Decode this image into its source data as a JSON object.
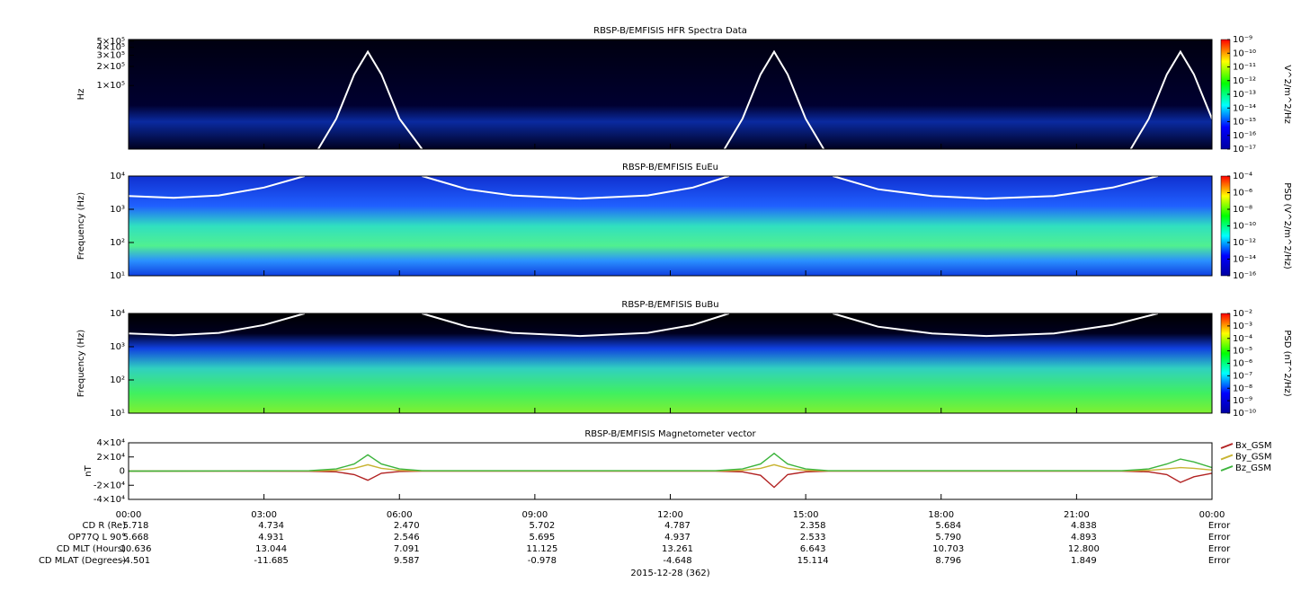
{
  "chart_data": [
    {
      "type": "spectrogram",
      "title": "RBSP-B/EMFISIS  HFR Spectra Data",
      "ylabel": "Hz",
      "log": true,
      "xlim": [
        0,
        24
      ],
      "xticks": [
        0,
        3,
        6,
        9,
        12,
        15,
        18,
        21,
        24
      ],
      "ylim": [
        10000,
        530000
      ],
      "yticks": [
        {
          "value": 500000,
          "label": "5×10⁵"
        },
        {
          "value": 400000,
          "label": "4×10⁵"
        },
        {
          "value": 300000,
          "label": "3×10⁵"
        },
        {
          "value": 200000,
          "label": "2×10⁵"
        },
        {
          "value": 100000,
          "label": "1×10⁵"
        }
      ],
      "colorbar": {
        "label": "V^2/m^2/Hz",
        "zlim": [
          1e-17,
          1e-09
        ],
        "ticks": [
          {
            "value": 1e-09,
            "label": "10⁻⁹"
          },
          {
            "value": 1e-10,
            "label": "10⁻¹⁰"
          },
          {
            "value": 1e-11,
            "label": "10⁻¹¹"
          },
          {
            "value": 1e-12,
            "label": "10⁻¹²"
          },
          {
            "value": 1e-13,
            "label": "10⁻¹³"
          },
          {
            "value": 1e-14,
            "label": "10⁻¹⁴"
          },
          {
            "value": 1e-15,
            "label": "10⁻¹⁵"
          },
          {
            "value": 1e-16,
            "label": "10⁻¹⁶"
          },
          {
            "value": 1e-17,
            "label": "10⁻¹⁷"
          }
        ]
      },
      "lines": [
        {
          "color": "#ffffff",
          "x": [
            4.2,
            4.6,
            5.0,
            5.3,
            5.6,
            6.0,
            6.5
          ],
          "values": [
            10000,
            30000,
            150000,
            340000,
            150000,
            30000,
            10000
          ]
        },
        {
          "color": "#ffffff",
          "x": [
            13.2,
            13.6,
            14.0,
            14.3,
            14.6,
            15.0,
            15.4
          ],
          "values": [
            10000,
            30000,
            150000,
            340000,
            150000,
            30000,
            10000
          ]
        },
        {
          "color": "#ffffff",
          "x": [
            22.2,
            22.6,
            23.0,
            23.3,
            23.6,
            24.0
          ],
          "values": [
            10000,
            30000,
            150000,
            340000,
            150000,
            30000
          ]
        }
      ]
    },
    {
      "type": "spectrogram",
      "title": "RBSP-B/EMFISIS  EuEu",
      "ylabel": "Frequency (Hz)",
      "log": true,
      "xlim": [
        0,
        24
      ],
      "xticks": [
        0,
        3,
        6,
        9,
        12,
        15,
        18,
        21,
        24
      ],
      "ylim": [
        10,
        10000
      ],
      "yticks": [
        {
          "value": 10,
          "label": "10¹"
        },
        {
          "value": 100,
          "label": "10²"
        },
        {
          "value": 1000,
          "label": "10³"
        },
        {
          "value": 10000,
          "label": "10⁴"
        }
      ],
      "colorbar": {
        "label": "PSD (V^2/m^2/Hz)",
        "zlim": [
          1e-16,
          0.0001
        ],
        "ticks": [
          {
            "value": 0.0001,
            "label": "10⁻⁴"
          },
          {
            "value": 1e-06,
            "label": "10⁻⁶"
          },
          {
            "value": 1e-08,
            "label": "10⁻⁸"
          },
          {
            "value": 1e-10,
            "label": "10⁻¹⁰"
          },
          {
            "value": 1e-12,
            "label": "10⁻¹²"
          },
          {
            "value": 1e-14,
            "label": "10⁻¹⁴"
          },
          {
            "value": 1e-16,
            "label": "10⁻¹⁶"
          }
        ]
      },
      "lines": [
        {
          "color": "#ffffff",
          "x": [
            0,
            1,
            2,
            3,
            3.9
          ],
          "values": [
            2500,
            2200,
            2600,
            4500,
            10000
          ]
        },
        {
          "color": "#ffffff",
          "x": [
            6.5,
            7.5,
            8.5,
            10,
            11.5,
            12.5,
            13.3
          ],
          "values": [
            10000,
            4000,
            2600,
            2100,
            2600,
            4500,
            10000
          ]
        },
        {
          "color": "#ffffff",
          "x": [
            15.6,
            16.6,
            17.8,
            19,
            20.5,
            21.8,
            22.8
          ],
          "values": [
            10000,
            4000,
            2500,
            2100,
            2500,
            4500,
            10000
          ]
        }
      ]
    },
    {
      "type": "spectrogram",
      "title": "RBSP-B/EMFISIS  BuBu",
      "ylabel": "Frequency (Hz)",
      "log": true,
      "xlim": [
        0,
        24
      ],
      "xticks": [
        0,
        3,
        6,
        9,
        12,
        15,
        18,
        21,
        24
      ],
      "ylim": [
        10,
        10000
      ],
      "yticks": [
        {
          "value": 10,
          "label": "10¹"
        },
        {
          "value": 100,
          "label": "10²"
        },
        {
          "value": 1000,
          "label": "10³"
        },
        {
          "value": 10000,
          "label": "10⁴"
        }
      ],
      "colorbar": {
        "label": "PSD (nT^2/Hz)",
        "zlim": [
          1e-10,
          0.01
        ],
        "ticks": [
          {
            "value": 0.01,
            "label": "10⁻²"
          },
          {
            "value": 0.001,
            "label": "10⁻³"
          },
          {
            "value": 0.0001,
            "label": "10⁻⁴"
          },
          {
            "value": 1e-05,
            "label": "10⁻⁵"
          },
          {
            "value": 1e-06,
            "label": "10⁻⁶"
          },
          {
            "value": 1e-07,
            "label": "10⁻⁷"
          },
          {
            "value": 1e-08,
            "label": "10⁻⁸"
          },
          {
            "value": 1e-09,
            "label": "10⁻⁹"
          },
          {
            "value": 1e-10,
            "label": "10⁻¹⁰"
          }
        ]
      },
      "lines": [
        {
          "color": "#ffffff",
          "x": [
            0,
            1,
            2,
            3,
            3.9
          ],
          "values": [
            2500,
            2200,
            2600,
            4500,
            10000
          ]
        },
        {
          "color": "#ffffff",
          "x": [
            6.5,
            7.5,
            8.5,
            10,
            11.5,
            12.5,
            13.3
          ],
          "values": [
            10000,
            4000,
            2600,
            2100,
            2600,
            4500,
            10000
          ]
        },
        {
          "color": "#ffffff",
          "x": [
            15.6,
            16.6,
            17.8,
            19,
            20.5,
            21.8,
            22.8
          ],
          "values": [
            10000,
            4000,
            2500,
            2100,
            2500,
            4500,
            10000
          ]
        }
      ]
    },
    {
      "type": "line",
      "title": "RBSP-B/EMFISIS  Magnetometer vector",
      "ylabel": "nT",
      "log": false,
      "xlim": [
        0,
        24
      ],
      "xticks": [
        {
          "value": 0,
          "label": "00:00"
        },
        {
          "value": 3,
          "label": "03:00"
        },
        {
          "value": 6,
          "label": "06:00"
        },
        {
          "value": 9,
          "label": "09:00"
        },
        {
          "value": 12,
          "label": "12:00"
        },
        {
          "value": 15,
          "label": "15:00"
        },
        {
          "value": 18,
          "label": "18:00"
        },
        {
          "value": 21,
          "label": "21:00"
        },
        {
          "value": 24,
          "label": "00:00"
        }
      ],
      "ylim": [
        -40000,
        40000
      ],
      "yticks": [
        {
          "value": 40000,
          "label": "4×10⁴"
        },
        {
          "value": 20000,
          "label": "2×10⁴"
        },
        0,
        {
          "value": -20000,
          "label": "-2×10⁴"
        },
        {
          "value": -40000,
          "label": "-4×10⁴"
        }
      ],
      "x": [
        0,
        4,
        4.6,
        5.0,
        5.3,
        5.6,
        6.0,
        6.5,
        13,
        13.6,
        14.0,
        14.3,
        14.6,
        15.0,
        15.5,
        22,
        22.6,
        23.0,
        23.3,
        23.6,
        24
      ],
      "series": [
        {
          "name": "Bx_GSM",
          "color": "#b22222",
          "values": [
            0,
            -200,
            -1000,
            -5000,
            -13000,
            -3000,
            -500,
            0,
            0,
            -1000,
            -6000,
            -23000,
            -5000,
            -1000,
            0,
            0,
            -1000,
            -5000,
            -16000,
            -8000,
            -3000
          ]
        },
        {
          "name": "By_GSM",
          "color": "#c8b432",
          "values": [
            0,
            200,
            1000,
            4000,
            9000,
            4000,
            1000,
            200,
            200,
            1000,
            4000,
            9000,
            4000,
            1000,
            200,
            200,
            1000,
            3000,
            5000,
            4000,
            1500
          ]
        },
        {
          "name": "Bz_GSM",
          "color": "#3cb43c",
          "values": [
            0,
            500,
            3000,
            10000,
            23000,
            10000,
            3000,
            500,
            500,
            3000,
            10000,
            25000,
            10000,
            3000,
            500,
            500,
            3000,
            10000,
            17000,
            13000,
            5000
          ]
        }
      ]
    }
  ],
  "ephemeris": {
    "rows": [
      {
        "label": "CD R (Re)",
        "values": [
          "5.718",
          "4.734",
          "2.470",
          "5.702",
          "4.787",
          "2.358",
          "5.684",
          "4.838",
          "Error"
        ]
      },
      {
        "label": "OP77Q L 90°",
        "values": [
          "5.668",
          "4.931",
          "2.546",
          "5.695",
          "4.937",
          "2.533",
          "5.790",
          "4.893",
          "Error"
        ]
      },
      {
        "label": "CD MLT (Hours)",
        "values": [
          "10.636",
          "13.044",
          "7.091",
          "11.125",
          "13.261",
          "6.643",
          "10.703",
          "12.800",
          "Error"
        ]
      },
      {
        "label": "CD MLAT (Degrees)",
        "values": [
          "-4.501",
          "-11.685",
          "9.587",
          "-0.978",
          "-4.648",
          "15.114",
          "8.796",
          "1.849",
          "Error"
        ]
      }
    ],
    "date": "2015-12-28 (362)"
  }
}
